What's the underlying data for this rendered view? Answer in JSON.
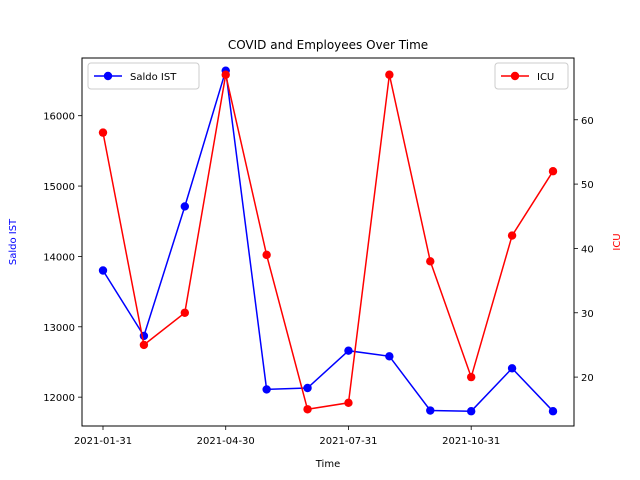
{
  "chart_data": {
    "type": "line",
    "title": "COVID and Employees Over Time",
    "xlabel": "Time",
    "x": [
      "2021-01-31",
      "2021-02-28",
      "2021-03-31",
      "2021-04-30",
      "2021-05-31",
      "2021-06-30",
      "2021-07-31",
      "2021-08-31",
      "2021-09-30",
      "2021-10-31",
      "2021-11-30",
      "2021-12-31"
    ],
    "xticks": [
      "2021-01-31",
      "2021-04-30",
      "2021-07-31",
      "2021-10-31"
    ],
    "left_axis": {
      "label": "Saldo IST",
      "color": "#0000ff",
      "ylim": [
        11590,
        16820
      ],
      "ticks": [
        12000,
        13000,
        14000,
        15000,
        16000
      ]
    },
    "right_axis": {
      "label": "ICU",
      "color": "#ff0000",
      "ylim": [
        12.4,
        69.6
      ],
      "ticks": [
        20,
        30,
        40,
        50,
        60
      ]
    },
    "series": [
      {
        "name": "Saldo IST",
        "axis": "left",
        "color": "#0000ff",
        "values": [
          13800,
          12870,
          14710,
          16640,
          12110,
          12130,
          12660,
          12580,
          11810,
          11800,
          12410,
          11800
        ]
      },
      {
        "name": "ICU",
        "axis": "right",
        "color": "#ff0000",
        "values": [
          58,
          25,
          30,
          67,
          39,
          15,
          16,
          67,
          38,
          20,
          42,
          52
        ]
      }
    ],
    "legend": [
      {
        "label": "Saldo IST",
        "placement": "upper-left"
      },
      {
        "label": "ICU",
        "placement": "upper-right"
      }
    ],
    "grid": false
  }
}
